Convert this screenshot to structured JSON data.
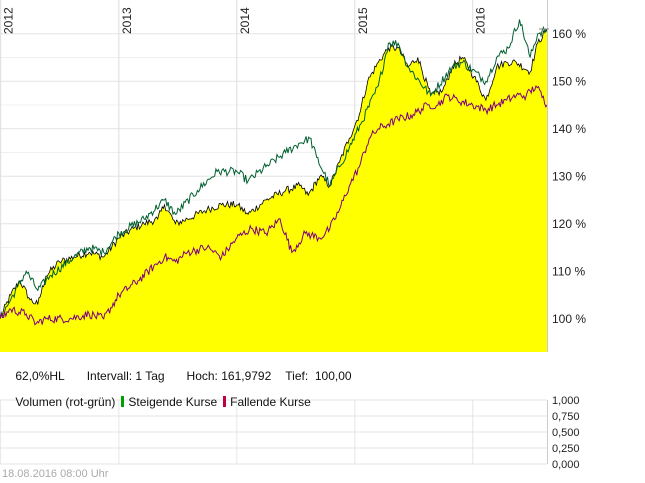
{
  "chart_data": [
    {
      "type": "area",
      "title": "",
      "xlabel": "",
      "ylabel": "",
      "x_tick_labels": [
        "2012",
        "2013",
        "2014",
        "2015",
        "2016"
      ],
      "x_range": [
        "2011-12-30",
        "2016-08-18"
      ],
      "y_ticks": [
        100,
        110,
        120,
        130,
        140,
        150,
        160
      ],
      "y_tick_labels": [
        "100 %",
        "110 %",
        "120 %",
        "130 %",
        "140 %",
        "150 %",
        "160 %"
      ],
      "ylim": [
        93,
        165
      ],
      "grid": true,
      "series": [
        {
          "kind": "area",
          "color": "#ffff00",
          "outline": "#000000",
          "points": [
            [
              "2011-12-30",
              100
            ],
            [
              "2012-02-01",
              105
            ],
            [
              "2012-03-01",
              108
            ],
            [
              "2012-04-01",
              104
            ],
            [
              "2012-04-25",
              103
            ],
            [
              "2012-05-20",
              109
            ],
            [
              "2012-07-01",
              112
            ],
            [
              "2012-08-15",
              113
            ],
            [
              "2012-10-01",
              114
            ],
            [
              "2012-11-15",
              113
            ],
            [
              "2013-01-01",
              117
            ],
            [
              "2013-02-15",
              119
            ],
            [
              "2013-03-20",
              120
            ],
            [
              "2013-05-01",
              121
            ],
            [
              "2013-05-22",
              124
            ],
            [
              "2013-06-25",
              120
            ],
            [
              "2013-08-01",
              121
            ],
            [
              "2013-10-01",
              123
            ],
            [
              "2013-11-15",
              124
            ],
            [
              "2014-01-01",
              124
            ],
            [
              "2014-02-05",
              122
            ],
            [
              "2014-04-01",
              125
            ],
            [
              "2014-06-01",
              127
            ],
            [
              "2014-07-15",
              128
            ],
            [
              "2014-08-10",
              126
            ],
            [
              "2014-09-15",
              130
            ],
            [
              "2014-10-16",
              128
            ],
            [
              "2014-11-15",
              133
            ],
            [
              "2014-12-15",
              138
            ],
            [
              "2015-01-15",
              143
            ],
            [
              "2015-02-10",
              150
            ],
            [
              "2015-03-15",
              154
            ],
            [
              "2015-04-15",
              157
            ],
            [
              "2015-05-15",
              157
            ],
            [
              "2015-06-15",
              153
            ],
            [
              "2015-07-15",
              155
            ],
            [
              "2015-08-24",
              147
            ],
            [
              "2015-09-30",
              148
            ],
            [
              "2015-10-30",
              153
            ],
            [
              "2015-11-30",
              155
            ],
            [
              "2016-01-05",
              151
            ],
            [
              "2016-02-11",
              146
            ],
            [
              "2016-03-15",
              153
            ],
            [
              "2016-04-15",
              154
            ],
            [
              "2016-05-15",
              154
            ],
            [
              "2016-06-27",
              152
            ],
            [
              "2016-07-20",
              158
            ],
            [
              "2016-08-18",
              161
            ]
          ]
        },
        {
          "kind": "line",
          "color": "#006030",
          "points": [
            [
              "2011-12-30",
              100
            ],
            [
              "2012-02-01",
              104
            ],
            [
              "2012-03-20",
              110
            ],
            [
              "2012-04-25",
              106
            ],
            [
              "2012-06-01",
              109
            ],
            [
              "2012-08-15",
              113
            ],
            [
              "2012-10-01",
              115
            ],
            [
              "2012-11-15",
              114
            ],
            [
              "2013-01-01",
              118
            ],
            [
              "2013-03-20",
              121
            ],
            [
              "2013-05-22",
              125
            ],
            [
              "2013-06-25",
              122
            ],
            [
              "2013-09-01",
              127
            ],
            [
              "2013-11-01",
              131
            ],
            [
              "2014-01-01",
              131
            ],
            [
              "2014-02-05",
              129
            ],
            [
              "2014-04-01",
              132
            ],
            [
              "2014-06-01",
              135
            ],
            [
              "2014-07-15",
              137
            ],
            [
              "2014-08-15",
              138
            ],
            [
              "2014-09-05",
              134
            ],
            [
              "2014-10-16",
              128
            ],
            [
              "2014-11-15",
              132
            ],
            [
              "2014-12-15",
              136
            ],
            [
              "2015-01-20",
              141
            ],
            [
              "2015-03-15",
              149
            ],
            [
              "2015-04-15",
              158
            ],
            [
              "2015-05-15",
              158
            ],
            [
              "2015-06-15",
              153
            ],
            [
              "2015-08-24",
              147
            ],
            [
              "2015-10-30",
              153
            ],
            [
              "2015-12-01",
              154
            ],
            [
              "2016-02-11",
              150
            ],
            [
              "2016-03-15",
              155
            ],
            [
              "2016-04-20",
              157
            ],
            [
              "2016-05-25",
              163
            ],
            [
              "2016-06-27",
              155
            ],
            [
              "2016-07-20",
              160
            ],
            [
              "2016-08-18",
              161
            ]
          ]
        },
        {
          "kind": "line",
          "color": "#800080",
          "points": [
            [
              "2011-12-30",
              100
            ],
            [
              "2012-02-01",
              102
            ],
            [
              "2012-03-20",
              101
            ],
            [
              "2012-04-20",
              99
            ],
            [
              "2012-05-20",
              100
            ],
            [
              "2012-08-01",
              100
            ],
            [
              "2012-10-01",
              101
            ],
            [
              "2012-11-15",
              100
            ],
            [
              "2013-01-01",
              105
            ],
            [
              "2013-03-01",
              108
            ],
            [
              "2013-05-22",
              113
            ],
            [
              "2013-06-25",
              112
            ],
            [
              "2013-08-01",
              114
            ],
            [
              "2013-10-01",
              115
            ],
            [
              "2013-11-15",
              113
            ],
            [
              "2014-01-01",
              117
            ],
            [
              "2014-02-15",
              119
            ],
            [
              "2014-04-01",
              118
            ],
            [
              "2014-05-15",
              121
            ],
            [
              "2014-06-20",
              114
            ],
            [
              "2014-08-01",
              118
            ],
            [
              "2014-09-15",
              117
            ],
            [
              "2014-10-16",
              119
            ],
            [
              "2014-11-15",
              123
            ],
            [
              "2014-12-15",
              128
            ],
            [
              "2015-01-15",
              132
            ],
            [
              "2015-02-15",
              138
            ],
            [
              "2015-03-15",
              140
            ],
            [
              "2015-04-15",
              141
            ],
            [
              "2015-05-15",
              142
            ],
            [
              "2015-07-01",
              143
            ],
            [
              "2015-08-15",
              145
            ],
            [
              "2015-09-15",
              145
            ],
            [
              "2015-10-15",
              147
            ],
            [
              "2015-11-15",
              146
            ],
            [
              "2016-01-01",
              145
            ],
            [
              "2016-02-11",
              144
            ],
            [
              "2016-03-15",
              145
            ],
            [
              "2016-04-15",
              146
            ],
            [
              "2016-05-15",
              147
            ],
            [
              "2016-06-15",
              147
            ],
            [
              "2016-07-15",
              149
            ],
            [
              "2016-08-18",
              145
            ]
          ]
        }
      ]
    },
    {
      "type": "bar",
      "title": "Volumen (rot-grün)",
      "y_ticks": [
        0,
        0.25,
        0.5,
        0.75,
        1
      ],
      "y_tick_labels": [
        "0,000",
        "0,250",
        "0,500",
        "0,750",
        "1,000"
      ],
      "ylim": [
        0,
        1
      ],
      "series": []
    }
  ],
  "info": {
    "range": "62,0%HL",
    "interval": "Intervall: 1 Tag",
    "high": "Hoch: 161,9792",
    "low": "Tief:  100,00"
  },
  "legend": {
    "volume_label": "Volumen (rot-grün)",
    "rising_label": "Steigende Kurse",
    "falling_label": "Fallende Kurse",
    "rising_color": "#00a000",
    "falling_color": "#c00040"
  },
  "footer": {
    "timestamp": "18.08.2016 08:00 Uhr"
  }
}
